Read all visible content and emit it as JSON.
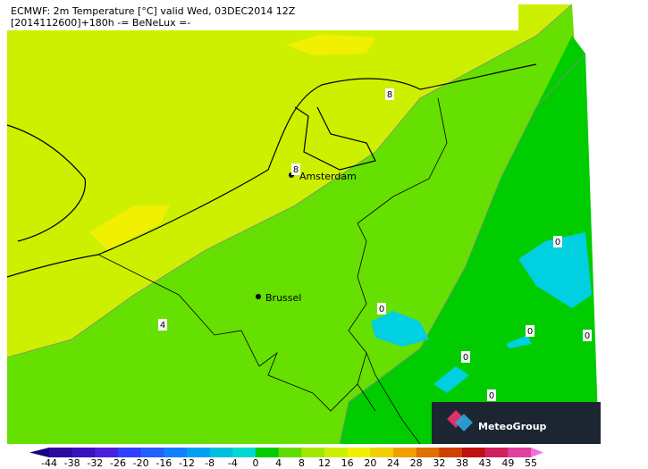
{
  "header": {
    "line1": "ECMWF: 2m Temperature [°C] valid Wed, 03DEC2014 12Z",
    "line2": "[2014112600]+180h -= BeNeLux =-"
  },
  "cities": [
    "Amsterdam",
    "Brussel"
  ],
  "contour_labels": [
    "8",
    "8",
    "4",
    "0",
    "0",
    "0",
    "0",
    "0",
    "0"
  ],
  "colorbar": {
    "ticks": [
      -44,
      -38,
      -32,
      -26,
      -20,
      -16,
      -12,
      -8,
      -4,
      0,
      4,
      8,
      12,
      16,
      20,
      24,
      28,
      32,
      38,
      43,
      49,
      55
    ],
    "colors": [
      "#1a0080",
      "#2a0aa0",
      "#3a10c0",
      "#4a20e0",
      "#3040ff",
      "#2060ff",
      "#1080ff",
      "#00a0f0",
      "#00c0e0",
      "#00d8d0",
      "#00cc00",
      "#60dd00",
      "#a0e800",
      "#ccf000",
      "#f0f000",
      "#f0d000",
      "#f0a000",
      "#e07000",
      "#d04000",
      "#c01010",
      "#d02060",
      "#e040a0",
      "#f070e0"
    ]
  },
  "logo": "MeteoGroup"
}
